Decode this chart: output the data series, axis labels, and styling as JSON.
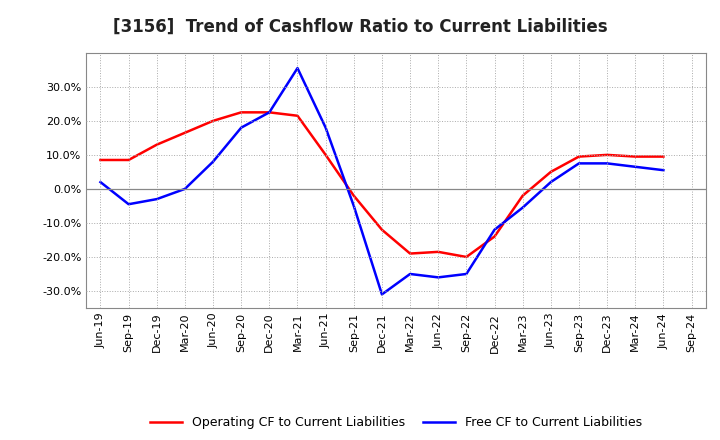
{
  "title": "[3156]  Trend of Cashflow Ratio to Current Liabilities",
  "x_labels": [
    "Jun-19",
    "Sep-19",
    "Dec-19",
    "Mar-20",
    "Jun-20",
    "Sep-20",
    "Dec-20",
    "Mar-21",
    "Jun-21",
    "Sep-21",
    "Dec-21",
    "Mar-22",
    "Jun-22",
    "Sep-22",
    "Dec-22",
    "Mar-23",
    "Jun-23",
    "Sep-23",
    "Dec-23",
    "Mar-24",
    "Jun-24",
    "Sep-24"
  ],
  "operating_cf": [
    8.5,
    8.5,
    13.0,
    16.5,
    20.0,
    22.5,
    22.5,
    21.5,
    10.0,
    -2.0,
    -12.0,
    -19.0,
    -18.5,
    -20.0,
    -14.0,
    -2.0,
    5.0,
    9.5,
    10.0,
    9.5,
    9.5,
    null
  ],
  "free_cf": [
    2.0,
    -4.5,
    -3.0,
    0.0,
    8.0,
    18.0,
    22.5,
    35.5,
    18.0,
    -5.0,
    -31.0,
    -25.0,
    -26.0,
    -25.0,
    -12.0,
    -5.5,
    2.0,
    7.5,
    7.5,
    6.5,
    5.5,
    null
  ],
  "operating_color": "#ff0000",
  "free_color": "#0000ff",
  "ylim": [
    -35,
    40
  ],
  "yticks": [
    -30,
    -20,
    -10,
    0,
    10,
    20,
    30
  ],
  "grid_color": "#aaaaaa",
  "background_color": "#ffffff",
  "legend_labels": [
    "Operating CF to Current Liabilities",
    "Free CF to Current Liabilities"
  ],
  "title_fontsize": 12,
  "axis_fontsize": 8,
  "legend_fontsize": 9
}
